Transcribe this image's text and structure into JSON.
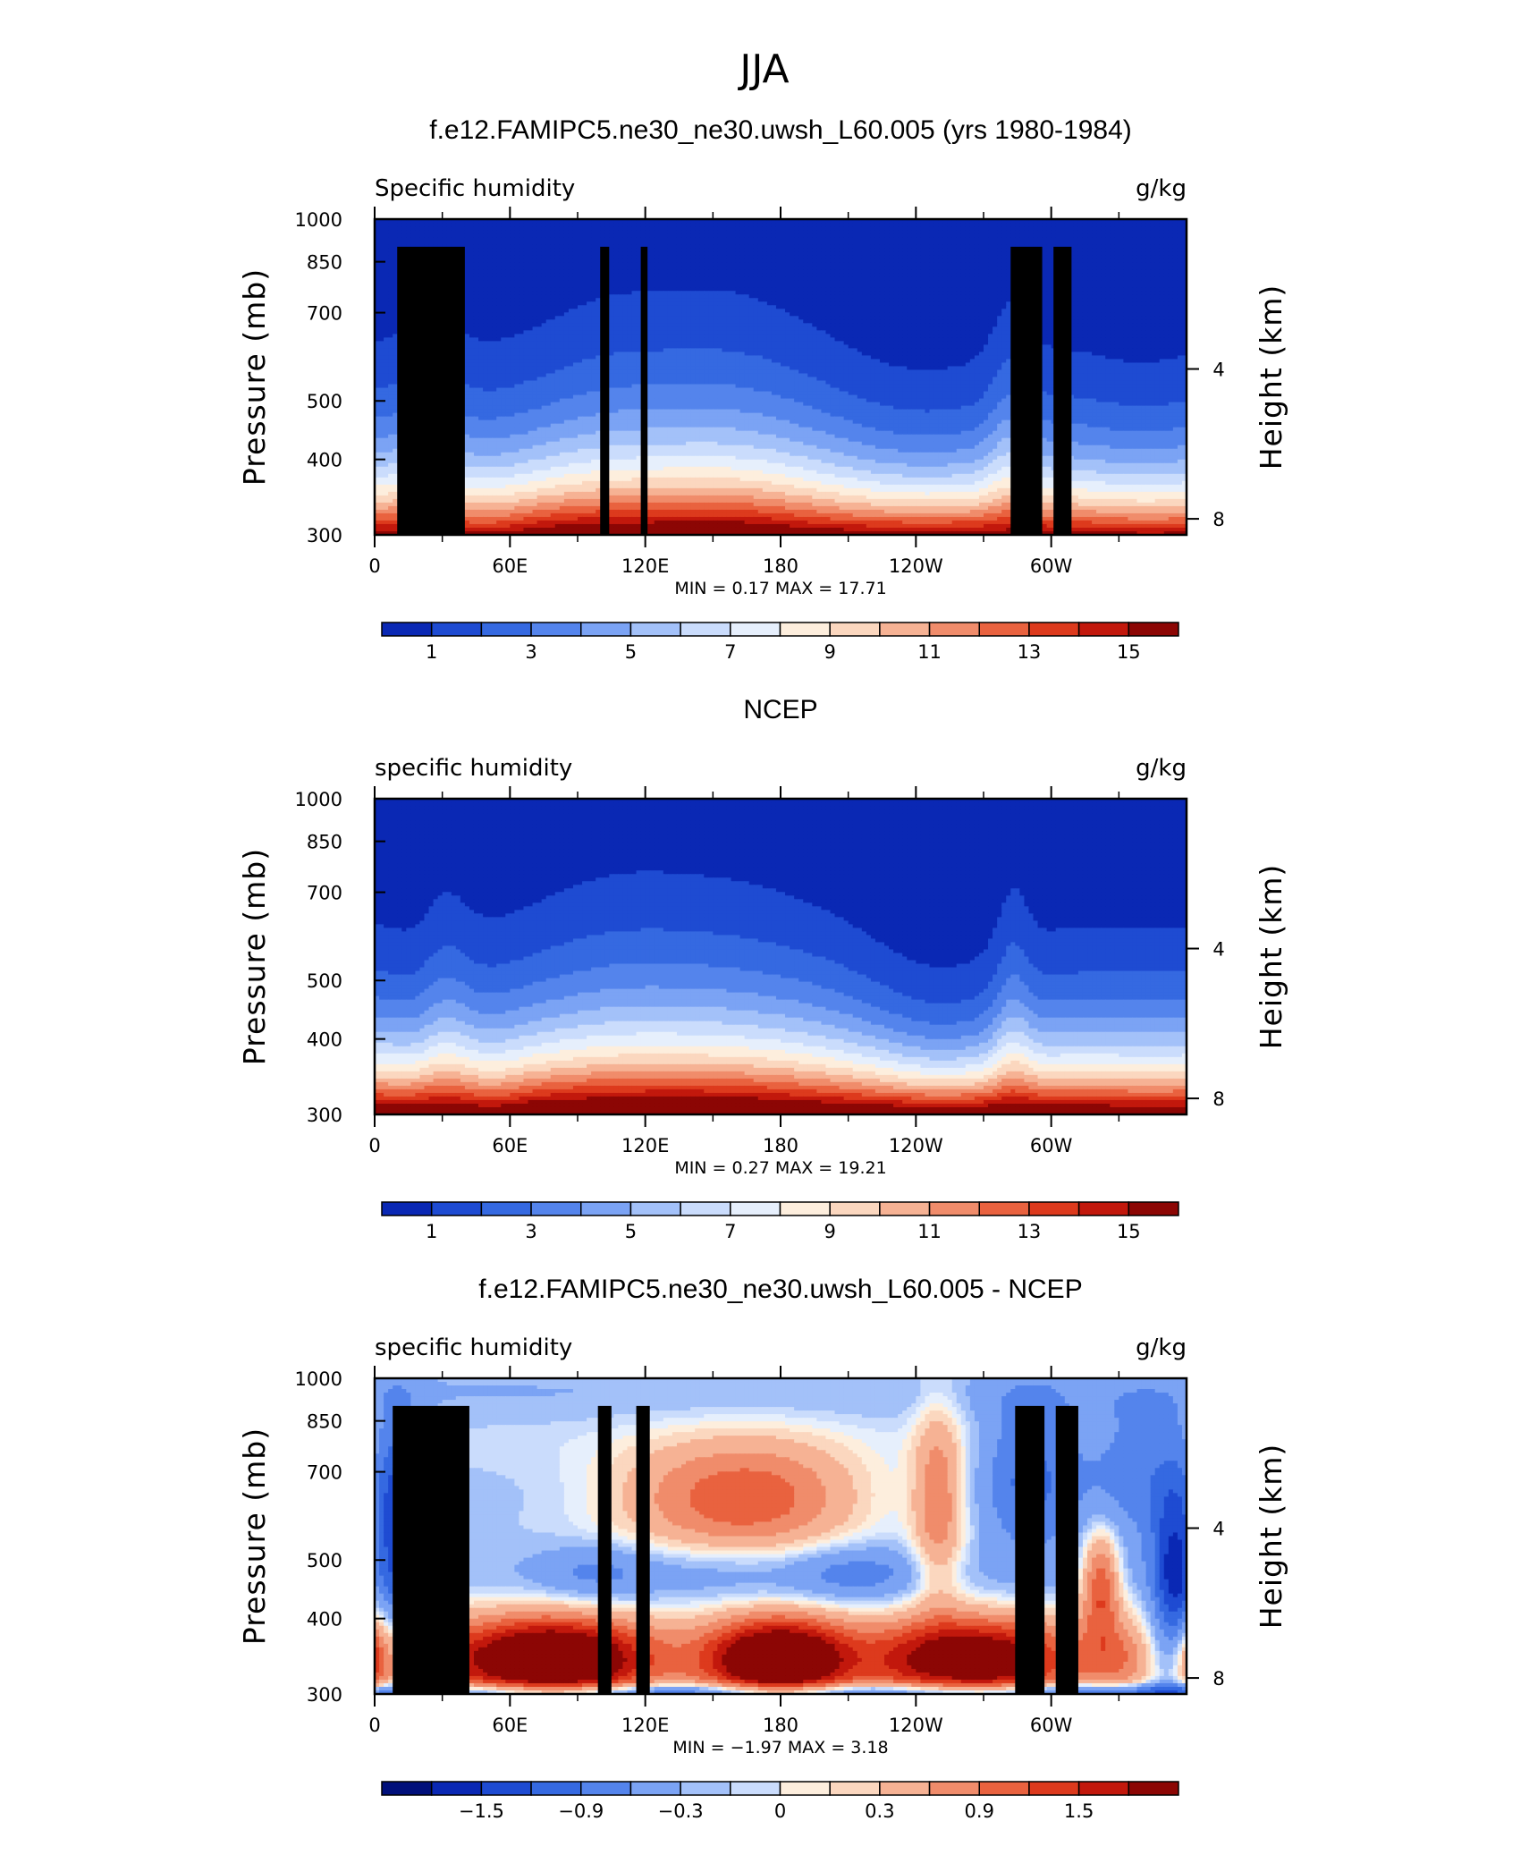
{
  "figure_title": "JJA",
  "colors": {
    "seq_levels": [
      "#000f7a",
      "#0a28b4",
      "#1e4bd2",
      "#3569e1",
      "#5484ec",
      "#7ba3f4",
      "#a3c1f9",
      "#cadcfc",
      "#e6effc",
      "#fdeedd",
      "#fbd7bf",
      "#f6b294",
      "#f08c6b",
      "#e9623f",
      "#dd3a1d",
      "#c2180c",
      "#8c0604"
    ],
    "diff_levels": [
      "#000f7a",
      "#0a28b4",
      "#1e4bd2",
      "#3569e1",
      "#5484ec",
      "#7ba3f4",
      "#a3c1f9",
      "#cadcfc",
      "#e6effc",
      "#fdeedd",
      "#fbd7bf",
      "#f6b294",
      "#f08c6b",
      "#e9623f",
      "#dd3a1d",
      "#c2180c",
      "#8c0604"
    ],
    "topography": "#000000"
  },
  "chart_data": [
    {
      "type": "heatmap",
      "title": "f.e12.FAMIPC5.ne30_ne30.uwsh_L60.005 (yrs 1980-1984)",
      "left_label": "Specific humidity",
      "right_label": "g/kg",
      "xlabel": "",
      "ylabel": "Pressure (mb)",
      "y2label": "Height (km)",
      "x_ticks": [
        "0",
        "60E",
        "120E",
        "180",
        "120W",
        "60W"
      ],
      "y_ticks": [
        "300",
        "400",
        "500",
        "700",
        "850",
        "1000"
      ],
      "y2_ticks": [
        "8",
        "4"
      ],
      "x_range_lon": [
        0,
        360
      ],
      "y_range_mb": [
        300,
        1000
      ],
      "log_pressure_axis": true,
      "stats_text": "MIN =     0.17   MAX =    17.71",
      "min": 0.17,
      "max": 17.71,
      "colorbar_labels": [
        "1",
        "3",
        "5",
        "7",
        "9",
        "11",
        "13",
        "15"
      ],
      "contour_levels": [
        0,
        1,
        2,
        3,
        4,
        5,
        6,
        7,
        8,
        9,
        10,
        11,
        12,
        13,
        14,
        15,
        16
      ],
      "topography": [
        {
          "lon": [
            10,
            40
          ],
          "top_mb": 900
        },
        {
          "lon": [
            30,
            37
          ],
          "top_mb": 820
        },
        {
          "lon": [
            100,
            104
          ],
          "top_mb": 900
        },
        {
          "lon": [
            118,
            121
          ],
          "top_mb": 900
        },
        {
          "lon": [
            282,
            296
          ],
          "top_mb": 900
        },
        {
          "lon": [
            301,
            309
          ],
          "top_mb": 900
        }
      ]
    },
    {
      "type": "heatmap",
      "title": "NCEP",
      "left_label": "specific humidity",
      "right_label": "g/kg",
      "xlabel": "",
      "ylabel": "Pressure (mb)",
      "y2label": "Height (km)",
      "x_ticks": [
        "0",
        "60E",
        "120E",
        "180",
        "120W",
        "60W"
      ],
      "y_ticks": [
        "300",
        "400",
        "500",
        "700",
        "850",
        "1000"
      ],
      "y2_ticks": [
        "8",
        "4"
      ],
      "x_range_lon": [
        0,
        360
      ],
      "y_range_mb": [
        300,
        1000
      ],
      "log_pressure_axis": true,
      "stats_text": "MIN =     0.27   MAX =    19.21",
      "min": 0.27,
      "max": 19.21,
      "colorbar_labels": [
        "1",
        "3",
        "5",
        "7",
        "9",
        "11",
        "13",
        "15"
      ],
      "contour_levels": [
        0,
        1,
        2,
        3,
        4,
        5,
        6,
        7,
        8,
        9,
        10,
        11,
        12,
        13,
        14,
        15,
        16
      ],
      "topography": []
    },
    {
      "type": "heatmap",
      "title": "f.e12.FAMIPC5.ne30_ne30.uwsh_L60.005 - NCEP",
      "left_label": "specific humidity",
      "right_label": "g/kg",
      "xlabel": "",
      "ylabel": "Pressure (mb)",
      "y2label": "Height (km)",
      "x_ticks": [
        "0",
        "60E",
        "120E",
        "180",
        "120W",
        "60W"
      ],
      "y_ticks": [
        "300",
        "400",
        "500",
        "700",
        "850",
        "1000"
      ],
      "y2_ticks": [
        "8",
        "4"
      ],
      "x_range_lon": [
        0,
        360
      ],
      "y_range_mb": [
        300,
        1000
      ],
      "log_pressure_axis": true,
      "stats_text": "MIN =    −1.97   MAX =      3.18",
      "min": -1.97,
      "max": 3.18,
      "colorbar_labels": [
        "−1.5",
        "−0.9",
        "−0.3",
        "0",
        "0.3",
        "0.9",
        "1.5"
      ],
      "contour_levels": [
        -1.8,
        -1.5,
        -1.2,
        -0.9,
        -0.6,
        -0.3,
        -0.15,
        -0.05,
        0.05,
        0.15,
        0.3,
        0.6,
        0.9,
        1.2,
        1.5,
        1.8
      ],
      "topography": [
        {
          "lon": [
            8,
            42
          ],
          "top_mb": 900
        },
        {
          "lon": [
            29,
            40
          ],
          "top_mb": 820
        },
        {
          "lon": [
            99,
            105
          ],
          "top_mb": 900
        },
        {
          "lon": [
            116,
            122
          ],
          "top_mb": 900
        },
        {
          "lon": [
            284,
            297
          ],
          "top_mb": 900
        },
        {
          "lon": [
            302,
            312
          ],
          "top_mb": 900
        }
      ]
    }
  ]
}
